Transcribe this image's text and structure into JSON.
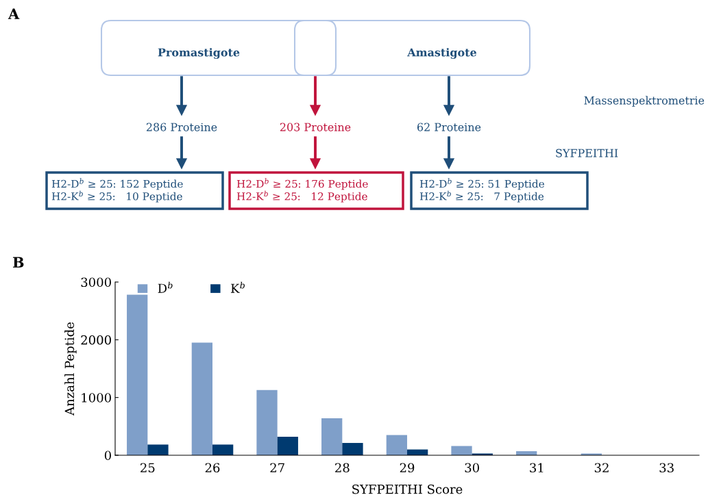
{
  "chart_data": [
    {
      "type": "other",
      "title": "A",
      "annotations": [
        "Promastigote",
        "Amastigote",
        "286 Proteine",
        "203 Proteine",
        "62 Proteine",
        "H2-D$^{b}$ ≥ 25: 152 Peptide\nH2-K$^{b}$ ≥ 25:   10 Peptide",
        "H2-D$^{b}$ ≥ 25: 176 Peptide\nH2-K$^{b}$ ≥ 25:   12 Peptide",
        "H2-D$^{b}$ ≥ 25: 51 Peptide\nH2-K$^{b}$ ≥ 25:   7 Peptide",
        "Massenspektrometrie",
        "SYFPEITHI"
      ]
    },
    {
      "type": "bar",
      "title": "B",
      "xlabel": "SYFPEITHI Score",
      "ylabel": "Anzahl Peptide",
      "categories": [
        "25",
        "26",
        "27",
        "28",
        "29",
        "30",
        "31",
        "32",
        "33"
      ],
      "series": [
        {
          "name": "D$^{b}$",
          "color": "#7f9fc9",
          "values": [
            2780,
            1950,
            1130,
            640,
            350,
            160,
            70,
            30,
            0
          ]
        },
        {
          "name": "K$^{b}$",
          "color": "#003a70",
          "values": [
            185,
            185,
            320,
            213,
            100,
            30,
            0,
            0,
            0
          ]
        }
      ],
      "ylim": [
        0,
        3000
      ],
      "yticks": [
        0,
        1000,
        2000,
        3000
      ],
      "legend": "top left",
      "grid": false
    }
  ]
}
